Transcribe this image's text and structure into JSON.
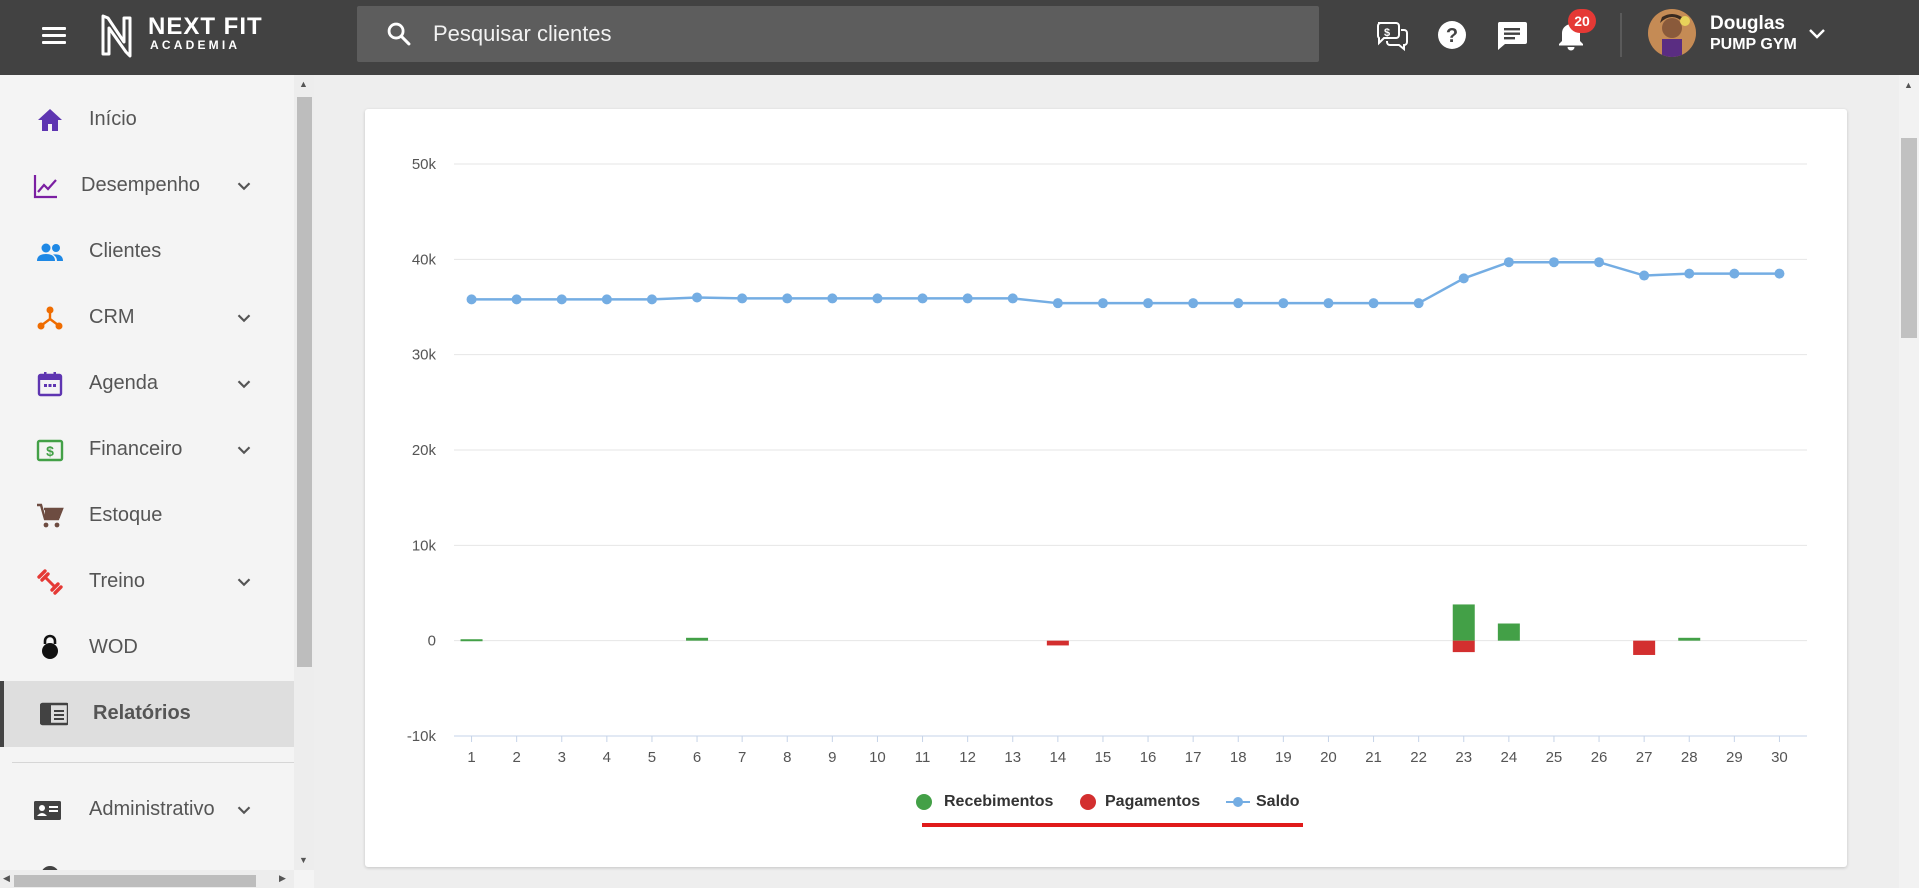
{
  "header": {
    "logo_text": "NEXT FIT",
    "logo_subtext": "ACADEMIA",
    "search_placeholder": "Pesquisar clientes",
    "notification_count": "20",
    "user_name": "Douglas",
    "user_gym": "PUMP GYM",
    "icons": [
      "menu-icon",
      "search-icon",
      "finance-chat-icon",
      "help-icon",
      "chat-icon",
      "bell-icon",
      "chevron-down-icon"
    ]
  },
  "sidebar": {
    "items": [
      {
        "label": "Início",
        "icon": "home-icon",
        "color": "#5e35b1",
        "expandable": false
      },
      {
        "label": "Desempenho",
        "icon": "trending-icon",
        "color": "#7b1fa2",
        "expandable": true
      },
      {
        "label": "Clientes",
        "icon": "people-icon",
        "color": "#1e88e5",
        "expandable": false
      },
      {
        "label": "CRM",
        "icon": "crm-icon",
        "color": "#ef6c00",
        "expandable": true
      },
      {
        "label": "Agenda",
        "icon": "calendar-icon",
        "color": "#5e35b1",
        "expandable": true
      },
      {
        "label": "Financeiro",
        "icon": "dollar-icon",
        "color": "#43a047",
        "expandable": true
      },
      {
        "label": "Estoque",
        "icon": "cart-icon",
        "color": "#6d4c41",
        "expandable": false
      },
      {
        "label": "Treino",
        "icon": "dumbbell-icon",
        "color": "#e53935",
        "expandable": true
      },
      {
        "label": "WOD",
        "icon": "kettlebell-icon",
        "color": "#111111",
        "expandable": false
      },
      {
        "label": "Relatórios",
        "icon": "report-icon",
        "color": "#424242",
        "expandable": false,
        "active": true
      },
      {
        "label": "Administrativo",
        "icon": "id-card-icon",
        "color": "#424242",
        "expandable": true
      }
    ]
  },
  "chart_data": {
    "type": "bar",
    "categories": [
      "1",
      "2",
      "3",
      "4",
      "5",
      "6",
      "7",
      "8",
      "9",
      "10",
      "11",
      "12",
      "13",
      "14",
      "15",
      "16",
      "17",
      "18",
      "19",
      "20",
      "21",
      "22",
      "23",
      "24",
      "25",
      "26",
      "27",
      "28",
      "29",
      "30"
    ],
    "ylim": [
      -10000,
      50000
    ],
    "yticks": [
      "50k",
      "40k",
      "30k",
      "20k",
      "10k",
      "0",
      "-10k"
    ],
    "ytick_values": [
      50000,
      40000,
      30000,
      20000,
      10000,
      0,
      -10000
    ],
    "grid": true,
    "legend_position": "bottom-center",
    "series": [
      {
        "name": "Recebimentos",
        "type": "bar",
        "color": "#43a047",
        "values": [
          150,
          0,
          0,
          0,
          0,
          300,
          0,
          0,
          0,
          0,
          0,
          0,
          0,
          0,
          0,
          0,
          0,
          0,
          0,
          0,
          0,
          0,
          3800,
          1800,
          0,
          0,
          0,
          300,
          0,
          0
        ]
      },
      {
        "name": "Pagamentos",
        "type": "bar",
        "color": "#d32f2f",
        "values": [
          0,
          0,
          0,
          0,
          0,
          0,
          0,
          0,
          0,
          0,
          0,
          0,
          0,
          -500,
          0,
          0,
          0,
          0,
          0,
          0,
          0,
          0,
          -1200,
          0,
          0,
          0,
          -1500,
          0,
          0,
          0
        ]
      },
      {
        "name": "Saldo",
        "type": "line",
        "color": "#74ade3",
        "values": [
          35800,
          35800,
          35800,
          35800,
          35800,
          36000,
          35900,
          35900,
          35900,
          35900,
          35900,
          35900,
          35900,
          35400,
          35400,
          35400,
          35400,
          35400,
          35400,
          35400,
          35400,
          35400,
          38000,
          39700,
          39700,
          39700,
          38300,
          38500,
          38500,
          38500
        ]
      }
    ]
  }
}
